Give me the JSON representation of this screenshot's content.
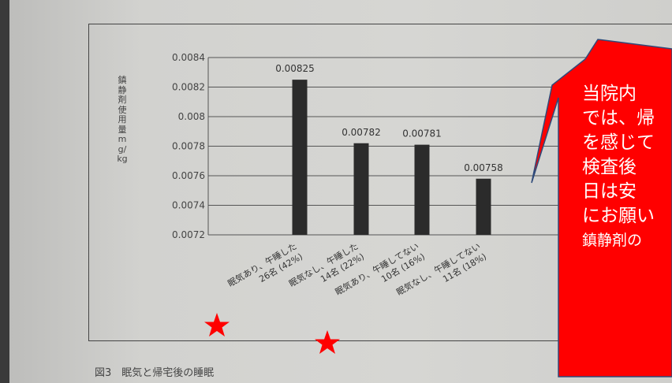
{
  "chart_data": {
    "type": "bar",
    "ylabel": "鎮静剤使用量mg/kg",
    "yticks": [
      "0.0084",
      "0.0082",
      "0.008",
      "0.0078",
      "0.0076",
      "0.0074",
      "0.0072"
    ],
    "ylim": [
      0.0072,
      0.0084
    ],
    "categories": [
      [
        "眠気あり、午睡した",
        "26名 (42%)"
      ],
      [
        "眠気なし、午睡した",
        "14名 (22%)"
      ],
      [
        "眠気あり、午睡してない",
        "10名 (16%)"
      ],
      [
        "眠気なし、午睡してない",
        "11名 (18%)"
      ]
    ],
    "values": [
      0.00825,
      0.00782,
      0.00781,
      0.00758
    ],
    "value_labels": [
      "0.00825",
      "0.00782",
      "0.00781",
      "0.00758"
    ],
    "grid": true,
    "bar_color": "#2b2b2b"
  },
  "caption": "図3　眠気と帰宅後の睡眠",
  "callout": {
    "lines": [
      "当院内",
      "では、帰",
      "を感じて",
      "検査後",
      "日は安",
      "にお願い",
      "鎮静剤の"
    ],
    "color": "#ff0000"
  },
  "stars_color": "#ff0000"
}
